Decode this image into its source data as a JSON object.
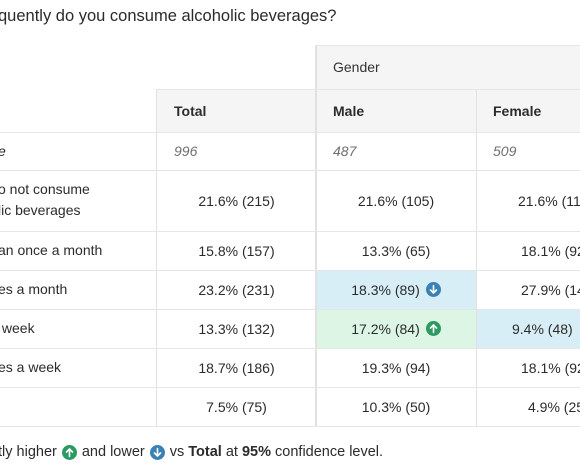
{
  "question": "quently do you consume alcoholic beverages?",
  "group_header": "Gender",
  "columns": {
    "total": "Total",
    "male": "Male",
    "female": "Female"
  },
  "rows": [
    {
      "label": "e",
      "total": "996",
      "male": "487",
      "female": "509"
    },
    {
      "label": "o not consume\nlic beverages",
      "total": "21.6% (215)",
      "male": "21.6% (105)",
      "female": "21.6% (11"
    },
    {
      "label": "an once a month",
      "total": "15.8% (157)",
      "male": "13.3% (65)",
      "female": "18.1% (92"
    },
    {
      "label": "es a month",
      "total": "23.2% (231)",
      "male": "18.3% (89)",
      "female": "27.9% (14"
    },
    {
      "label": " week",
      "total": "13.3% (132)",
      "male": "17.2% (84)",
      "female": "9.4% (48)"
    },
    {
      "label": "es a week",
      "total": "18.7% (186)",
      "male": "19.3% (94)",
      "female": "18.1% (92"
    },
    {
      "label": "",
      "total": "7.5% (75)",
      "male": "10.3% (50)",
      "female": "4.9% (25"
    }
  ],
  "footer": {
    "prefix": "tly higher",
    "mid": "and lower",
    "vs": "vs",
    "total_bold": "Total",
    "at": "at",
    "pct_bold": "95%",
    "suffix": "confidence level."
  },
  "colors": {
    "significant_lower_bg": "#d8eef6",
    "significant_higher_bg": "#dcf5e4",
    "arrow_down": "#3a82b5",
    "arrow_up": "#2c9a62"
  },
  "icons": {
    "down": "arrow-down-circle-icon",
    "up": "arrow-up-circle-icon"
  }
}
